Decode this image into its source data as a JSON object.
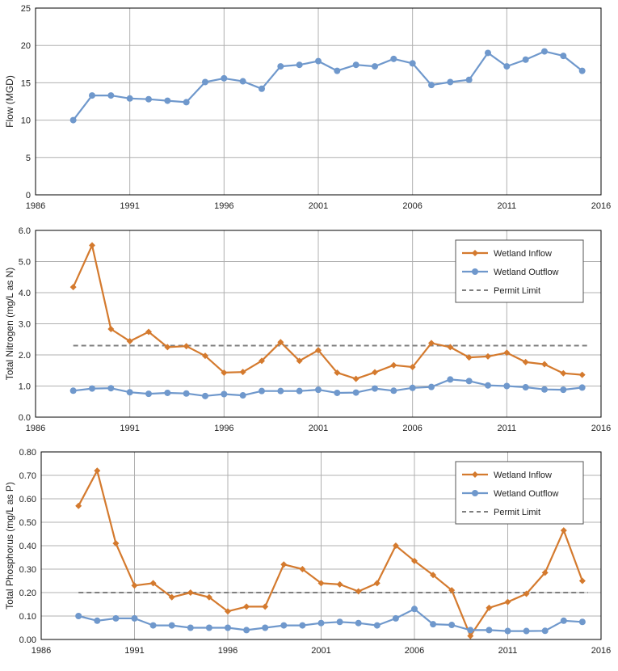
{
  "colors": {
    "inflow": "#D47A2E",
    "outflow": "#6F98CC",
    "permit": "#7F7F7F",
    "grid": "#B0B0B0",
    "frame": "#000000"
  },
  "chart_data": [
    {
      "type": "line",
      "ylabel": "Flow (MGD)",
      "xlim": [
        1986,
        2016
      ],
      "ylim": [
        0,
        25
      ],
      "xticks": [
        "1986",
        "1991",
        "1996",
        "2001",
        "2006",
        "2011",
        "2016"
      ],
      "yticks": [
        "0",
        "5",
        "10",
        "15",
        "20",
        "25"
      ],
      "legend": null,
      "series": [
        {
          "name": "Flow",
          "marker": "circle",
          "x": [
            1988,
            1989,
            1990,
            1991,
            1992,
            1993,
            1994,
            1995,
            1996,
            1997,
            1998,
            1999,
            2000,
            2001,
            2002,
            2003,
            2004,
            2005,
            2006,
            2007,
            2008,
            2009,
            2010,
            2011,
            2012,
            2013,
            2014,
            2015
          ],
          "values": [
            10.0,
            13.3,
            13.3,
            12.9,
            12.8,
            12.6,
            12.4,
            15.1,
            15.6,
            15.2,
            14.2,
            17.2,
            17.4,
            17.9,
            16.6,
            17.4,
            17.2,
            18.2,
            17.6,
            14.7,
            15.1,
            15.4,
            19.0,
            17.2,
            18.1,
            19.2,
            18.6,
            16.6
          ]
        }
      ]
    },
    {
      "type": "line",
      "ylabel": "Total Nitrogen (mg/L as N)",
      "xlim": [
        1986,
        2016
      ],
      "ylim": [
        0,
        6
      ],
      "xticks": [
        "1986",
        "1991",
        "1996",
        "2001",
        "2006",
        "2011",
        "2016"
      ],
      "yticks": [
        "0.0",
        "1.0",
        "2.0",
        "3.0",
        "4.0",
        "5.0",
        "6.0"
      ],
      "legend": [
        "Wetland Inflow",
        "Wetland Outflow",
        "Permit Limit"
      ],
      "legend_position": "top-right",
      "permit_limit": 2.3,
      "series": [
        {
          "name": "Wetland Inflow",
          "marker": "diamond",
          "x": [
            1988,
            1989,
            1990,
            1991,
            1992,
            1993,
            1994,
            1995,
            1996,
            1997,
            1998,
            1999,
            2000,
            2001,
            2002,
            2003,
            2004,
            2005,
            2006,
            2007,
            2008,
            2009,
            2010,
            2011,
            2012,
            2013,
            2014,
            2015
          ],
          "values": [
            4.18,
            5.52,
            2.83,
            2.44,
            2.74,
            2.25,
            2.28,
            1.97,
            1.43,
            1.45,
            1.81,
            2.41,
            1.81,
            2.15,
            1.43,
            1.23,
            1.44,
            1.67,
            1.61,
            2.38,
            2.25,
            1.92,
            1.95,
            2.07,
            1.77,
            1.7,
            1.41,
            1.36
          ]
        },
        {
          "name": "Wetland Outflow",
          "marker": "circle",
          "x": [
            1988,
            1989,
            1990,
            1991,
            1992,
            1993,
            1994,
            1995,
            1996,
            1997,
            1998,
            1999,
            2000,
            2001,
            2002,
            2003,
            2004,
            2005,
            2006,
            2007,
            2008,
            2009,
            2010,
            2011,
            2012,
            2013,
            2014,
            2015
          ],
          "values": [
            0.85,
            0.92,
            0.93,
            0.8,
            0.75,
            0.78,
            0.76,
            0.68,
            0.74,
            0.7,
            0.84,
            0.84,
            0.84,
            0.88,
            0.78,
            0.79,
            0.92,
            0.85,
            0.94,
            0.97,
            1.21,
            1.16,
            1.02,
            1.0,
            0.96,
            0.89,
            0.88,
            0.95
          ]
        }
      ]
    },
    {
      "type": "line",
      "ylabel": "Total Phosphorus (mg/L as P)",
      "xlim": [
        1986,
        2016
      ],
      "ylim": [
        0,
        0.8
      ],
      "xticks": [
        "1986",
        "1991",
        "1996",
        "2001",
        "2006",
        "2011",
        "2016"
      ],
      "yticks": [
        "0.00",
        "0.10",
        "0.20",
        "0.30",
        "0.40",
        "0.50",
        "0.60",
        "0.70",
        "0.80"
      ],
      "legend": [
        "Wetland Inflow",
        "Wetland Outflow",
        "Permit Limit"
      ],
      "legend_position": "top-right",
      "permit_limit": 0.2,
      "series": [
        {
          "name": "Wetland Inflow",
          "marker": "diamond",
          "x": [
            1988,
            1989,
            1990,
            1991,
            1992,
            1993,
            1994,
            1995,
            1996,
            1997,
            1998,
            1999,
            2000,
            2001,
            2002,
            2003,
            2004,
            2005,
            2006,
            2007,
            2008,
            2009,
            2010,
            2011,
            2012,
            2013,
            2014,
            2015
          ],
          "values": [
            0.57,
            0.72,
            0.41,
            0.23,
            0.24,
            0.18,
            0.2,
            0.18,
            0.12,
            0.14,
            0.14,
            0.32,
            0.3,
            0.24,
            0.235,
            0.205,
            0.24,
            0.4,
            0.335,
            0.275,
            0.21,
            0.015,
            0.135,
            0.16,
            0.195,
            0.285,
            0.465,
            0.25
          ]
        },
        {
          "name": "Wetland Outflow",
          "marker": "circle",
          "x": [
            1988,
            1989,
            1990,
            1991,
            1992,
            1993,
            1994,
            1995,
            1996,
            1997,
            1998,
            1999,
            2000,
            2001,
            2002,
            2003,
            2004,
            2005,
            2006,
            2007,
            2008,
            2009,
            2010,
            2011,
            2012,
            2013,
            2014,
            2015
          ],
          "values": [
            0.1,
            0.08,
            0.09,
            0.09,
            0.06,
            0.06,
            0.05,
            0.05,
            0.05,
            0.04,
            0.05,
            0.06,
            0.06,
            0.07,
            0.075,
            0.07,
            0.06,
            0.09,
            0.13,
            0.065,
            0.062,
            0.04,
            0.04,
            0.036,
            0.036,
            0.037,
            0.08,
            0.075
          ]
        }
      ]
    }
  ]
}
